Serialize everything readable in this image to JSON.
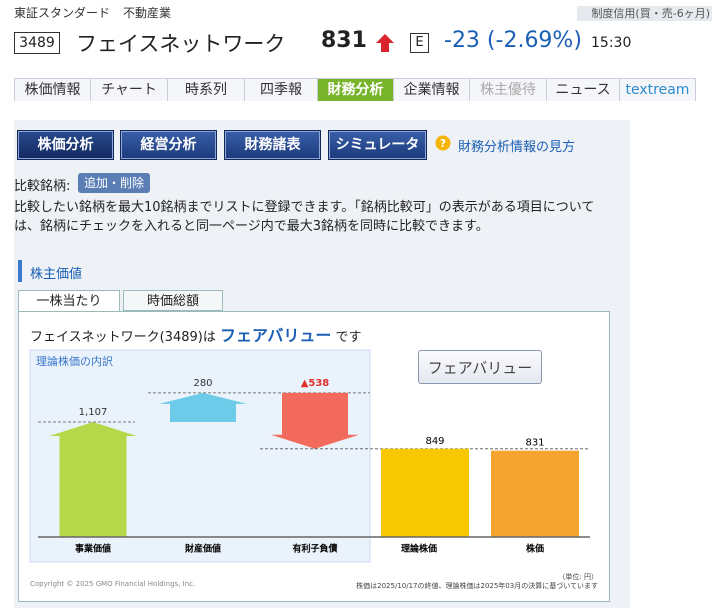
{
  "header": {
    "market": "東証スタンダード",
    "industry": "不動産業",
    "credit": "制度信用(買・売-6ヶ月)",
    "code": "3489",
    "name": "フェイスネットワーク",
    "price": "831",
    "market_flag": "E",
    "change": "-23 (-2.69%)",
    "time": "15:30"
  },
  "nav": {
    "tabs": [
      "株価情報",
      "チャート",
      "時系列",
      "四季報",
      "財務分析",
      "企業情報",
      "株主優待",
      "ニュース",
      "textream"
    ]
  },
  "subnav": {
    "buttons": [
      "株価分析",
      "経営分析",
      "財務諸表",
      "シミュレータ"
    ],
    "help": "財務分析情報の見方"
  },
  "compare": {
    "label": "比較銘柄:",
    "button": "追加・削除",
    "description": "比較したい銘柄を最大10銘柄までリストに登録できます。「銘柄比較可」の表示がある項目については、銘柄にチェックを入れると同一ページ内で最大3銘柄を同時に比較できます。"
  },
  "section": {
    "title": "株主価値",
    "tabs": [
      "一株当たり",
      "時価総額"
    ]
  },
  "panel": {
    "headline_prefix": "フェイスネットワーク(3489)は",
    "verdict": "フェアバリュー",
    "headline_suffix": "です",
    "badge": "フェアバリュー",
    "chart": {
      "type": "waterfall",
      "breakdown": {
        "title": "理論株価の内訳",
        "categories": [
          "事業価値",
          "財産価値",
          "有利子負債"
        ],
        "values": [
          1107,
          280,
          -538
        ],
        "value_labels": [
          "1,107",
          "280",
          "▲538"
        ],
        "colors": [
          "#b5d84a",
          "#6ccbe8",
          "#f26a5c"
        ]
      },
      "totals": {
        "categories": [
          "理論株価",
          "株価"
        ],
        "values": [
          849,
          831
        ],
        "colors": [
          "#f7c800",
          "#f5a42f"
        ]
      }
    },
    "unit": "（単位: 円）",
    "note": "株価は2025/10/17の終値、理論株価は2025年03月の決算に基づいています",
    "copyright": "Copyright © 2025 GMO Financial Holdings, Inc."
  }
}
